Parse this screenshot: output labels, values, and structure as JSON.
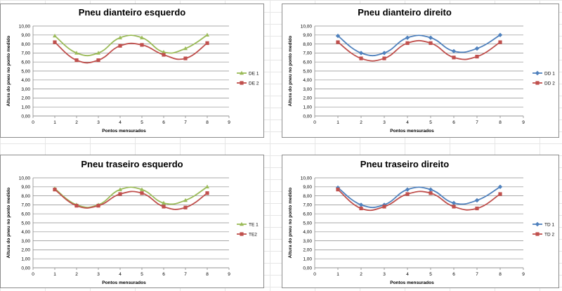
{
  "colors": {
    "green": "#9bbb59",
    "blue": "#4f81bd",
    "red": "#c0504d",
    "grid": "#8c8c8c",
    "axis": "#8c8c8c"
  },
  "chart_data": [
    {
      "type": "line",
      "title": "Pneu dianteiro esquerdo",
      "xlabel": "Pontos mensurados",
      "ylabel": "Altura do pneu no ponto medido",
      "xlim": [
        0,
        9
      ],
      "ylim": [
        0,
        10
      ],
      "x_ticks": [
        "0",
        "1",
        "2",
        "3",
        "4",
        "5",
        "6",
        "7",
        "8",
        "9"
      ],
      "y_ticks": [
        "0,00",
        "1,00",
        "2,00",
        "3,00",
        "4,00",
        "5,00",
        "6,00",
        "7,00",
        "8,00",
        "9,00",
        "10,00"
      ],
      "grid": true,
      "legend": "right",
      "x": [
        1,
        2,
        3,
        4,
        5,
        6,
        7,
        8
      ],
      "series": [
        {
          "name": "DE 1",
          "color": "green",
          "marker": "triangle",
          "values": [
            8.9,
            7.0,
            7.0,
            8.7,
            8.7,
            7.1,
            7.5,
            9.0
          ]
        },
        {
          "name": "DE 2",
          "color": "red",
          "marker": "square",
          "values": [
            8.2,
            6.2,
            6.2,
            7.8,
            7.9,
            6.8,
            6.4,
            8.1
          ]
        }
      ]
    },
    {
      "type": "line",
      "title": "Pneu dianteiro direito",
      "xlabel": "Pontos mensurados",
      "ylabel": "Altura do pneu no ponto medido",
      "xlim": [
        0,
        9
      ],
      "ylim": [
        0,
        10
      ],
      "x_ticks": [
        "0",
        "1",
        "2",
        "3",
        "4",
        "5",
        "6",
        "7",
        "8",
        "9"
      ],
      "y_ticks": [
        "0,00",
        "1,00",
        "2,00",
        "3,00",
        "4,00",
        "5,00",
        "6,00",
        "7,00",
        "8,00",
        "9,00",
        "10,00"
      ],
      "grid": true,
      "legend": "right",
      "x": [
        1,
        2,
        3,
        4,
        5,
        6,
        7,
        8
      ],
      "series": [
        {
          "name": "DD 1",
          "color": "blue",
          "marker": "diamond",
          "values": [
            8.9,
            7.0,
            7.0,
            8.7,
            8.7,
            7.2,
            7.5,
            9.0
          ]
        },
        {
          "name": "DD 2",
          "color": "red",
          "marker": "square",
          "values": [
            8.2,
            6.4,
            6.4,
            8.1,
            8.1,
            6.5,
            6.6,
            8.2
          ]
        }
      ]
    },
    {
      "type": "line",
      "title": "Pneu traseiro esquerdo",
      "xlabel": "Pontos mensurados",
      "ylabel": "Altura do pneu no ponto medido",
      "xlim": [
        0,
        9
      ],
      "ylim": [
        0,
        10
      ],
      "x_ticks": [
        "0",
        "1",
        "2",
        "3",
        "4",
        "5",
        "6",
        "7",
        "8",
        "9"
      ],
      "y_ticks": [
        "0,00",
        "1,00",
        "2,00",
        "3,00",
        "4,00",
        "5,00",
        "6,00",
        "7,00",
        "8,00",
        "9,00",
        "10,00"
      ],
      "grid": true,
      "legend": "right",
      "x": [
        1,
        2,
        3,
        4,
        5,
        6,
        7,
        8
      ],
      "series": [
        {
          "name": "TE 1",
          "color": "green",
          "marker": "triangle",
          "values": [
            8.8,
            7.0,
            7.0,
            8.7,
            8.7,
            7.2,
            7.5,
            9.0
          ]
        },
        {
          "name": "TE2",
          "color": "red",
          "marker": "square",
          "values": [
            8.7,
            6.9,
            6.9,
            8.2,
            8.3,
            6.8,
            6.7,
            8.3
          ]
        }
      ]
    },
    {
      "type": "line",
      "title": "Pneu traseiro direito",
      "xlabel": "Pontos mensurados",
      "ylabel": "Altura do pneu no ponto medido",
      "xlim": [
        0,
        9
      ],
      "ylim": [
        0,
        10
      ],
      "x_ticks": [
        "0",
        "1",
        "2",
        "3",
        "4",
        "5",
        "6",
        "7",
        "8",
        "9"
      ],
      "y_ticks": [
        "0,00",
        "1,00",
        "2,00",
        "3,00",
        "4,00",
        "5,00",
        "6,00",
        "7,00",
        "8,00",
        "9,00",
        "10,00"
      ],
      "grid": true,
      "legend": "right",
      "x": [
        1,
        2,
        3,
        4,
        5,
        6,
        7,
        8
      ],
      "series": [
        {
          "name": "TD 1",
          "color": "blue",
          "marker": "diamond",
          "values": [
            8.9,
            7.0,
            7.0,
            8.7,
            8.7,
            7.2,
            7.5,
            9.0
          ]
        },
        {
          "name": "TD 2",
          "color": "red",
          "marker": "square",
          "values": [
            8.7,
            6.6,
            6.8,
            8.2,
            8.3,
            6.8,
            6.6,
            8.2
          ]
        }
      ]
    }
  ]
}
